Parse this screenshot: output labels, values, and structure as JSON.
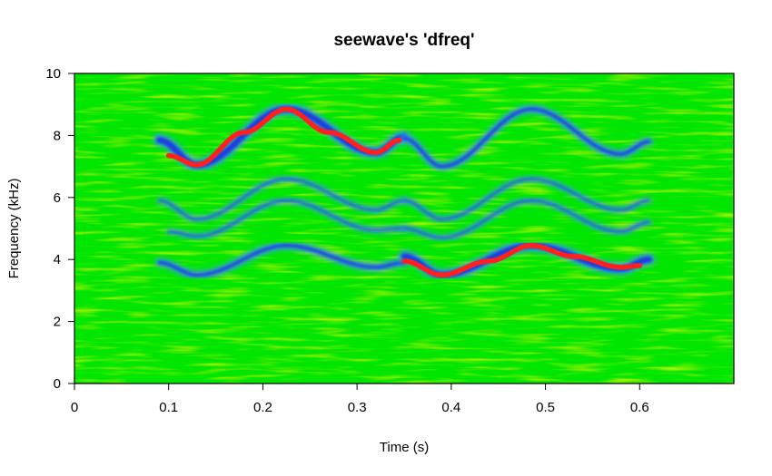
{
  "chart_data": {
    "type": "heatmap",
    "subtype": "spectrogram with dominant-frequency overlay",
    "title": "seewave's 'dfreq'",
    "xlabel": "Time (s)",
    "ylabel": "Frequency (kHz)",
    "xlim": [
      0,
      0.7
    ],
    "ylim": [
      0,
      10
    ],
    "x_ticks": [
      0,
      0.1,
      0.2,
      0.3,
      0.4,
      0.5,
      0.6
    ],
    "x_tick_labels": [
      "0",
      "0.1",
      "0.2",
      "0.3",
      "0.4",
      "0.5",
      "0.6"
    ],
    "y_ticks": [
      0,
      2,
      4,
      6,
      8,
      10
    ],
    "y_tick_labels": [
      "0",
      "2",
      "4",
      "6",
      "8",
      "10"
    ],
    "background_colors": [
      "#00e600",
      "#7ed800",
      "#c8ec00"
    ],
    "harmonic_color": "#3aa0f0",
    "harmonic_core_color": "#1e3cdc",
    "overlay_color": "#ff2020",
    "harmonics": [
      {
        "t_start": 0.09,
        "t_end": 0.35,
        "points": [
          [
            0.09,
            7.85
          ],
          [
            0.13,
            7.05
          ],
          [
            0.225,
            8.85
          ],
          [
            0.32,
            7.45
          ],
          [
            0.35,
            7.95
          ]
        ],
        "intensity": "strong"
      },
      {
        "t_start": 0.35,
        "t_end": 0.61,
        "points": [
          [
            0.35,
            7.9
          ],
          [
            0.39,
            7.0
          ],
          [
            0.485,
            8.85
          ],
          [
            0.58,
            7.4
          ],
          [
            0.61,
            7.8
          ]
        ],
        "intensity": "medium"
      },
      {
        "t_start": 0.09,
        "t_end": 0.35,
        "points": [
          [
            0.09,
            5.9
          ],
          [
            0.13,
            5.3
          ],
          [
            0.225,
            6.6
          ],
          [
            0.32,
            5.6
          ],
          [
            0.35,
            5.9
          ]
        ],
        "intensity": "weak"
      },
      {
        "t_start": 0.35,
        "t_end": 0.61,
        "points": [
          [
            0.35,
            5.9
          ],
          [
            0.39,
            5.3
          ],
          [
            0.485,
            6.6
          ],
          [
            0.58,
            5.6
          ],
          [
            0.61,
            5.9
          ]
        ],
        "intensity": "weak"
      },
      {
        "t_start": 0.1,
        "t_end": 0.35,
        "points": [
          [
            0.1,
            4.9
          ],
          [
            0.13,
            4.75
          ],
          [
            0.225,
            5.9
          ],
          [
            0.32,
            4.95
          ],
          [
            0.35,
            5.0
          ]
        ],
        "intensity": "weak"
      },
      {
        "t_start": 0.35,
        "t_end": 0.61,
        "points": [
          [
            0.35,
            5.0
          ],
          [
            0.39,
            4.7
          ],
          [
            0.485,
            5.9
          ],
          [
            0.58,
            4.9
          ],
          [
            0.61,
            5.2
          ]
        ],
        "intensity": "weak"
      },
      {
        "t_start": 0.09,
        "t_end": 0.35,
        "points": [
          [
            0.09,
            3.9
          ],
          [
            0.13,
            3.5
          ],
          [
            0.225,
            4.45
          ],
          [
            0.32,
            3.75
          ],
          [
            0.35,
            3.9
          ]
        ],
        "intensity": "medium"
      },
      {
        "t_start": 0.35,
        "t_end": 0.61,
        "points": [
          [
            0.35,
            4.1
          ],
          [
            0.39,
            3.5
          ],
          [
            0.485,
            4.45
          ],
          [
            0.58,
            3.7
          ],
          [
            0.61,
            4.0
          ]
        ],
        "intensity": "strong"
      }
    ],
    "dominant_frequency": [
      {
        "name": "",
        "points": [
          [
            0.1,
            7.35
          ],
          [
            0.13,
            7.05
          ],
          [
            0.18,
            8.1
          ],
          [
            0.225,
            8.85
          ],
          [
            0.27,
            8.1
          ],
          [
            0.32,
            7.45
          ],
          [
            0.345,
            7.85
          ]
        ]
      },
      {
        "name": "",
        "points": [
          [
            0.35,
            3.95
          ],
          [
            0.39,
            3.5
          ],
          [
            0.44,
            3.95
          ],
          [
            0.485,
            4.45
          ],
          [
            0.53,
            4.1
          ],
          [
            0.58,
            3.75
          ],
          [
            0.6,
            3.8
          ]
        ]
      }
    ]
  }
}
